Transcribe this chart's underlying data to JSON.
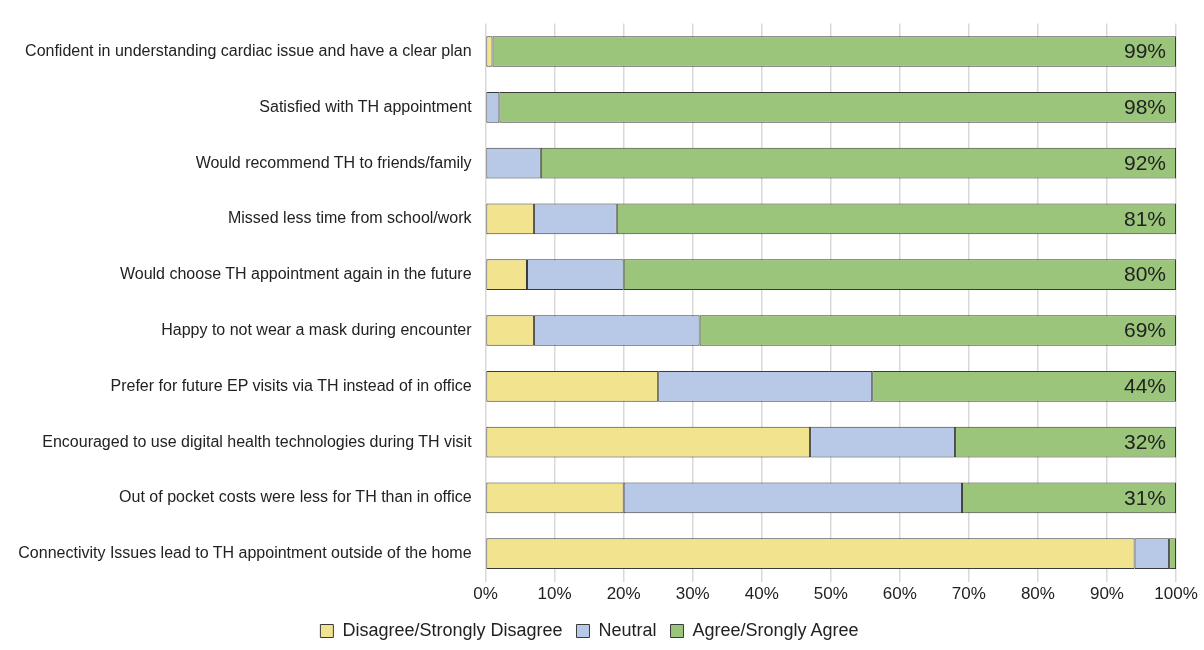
{
  "chart_data": {
    "type": "bar",
    "orientation": "horizontal",
    "stacked": true,
    "categories": [
      "Confident in understanding cardiac issue and have a clear plan",
      "Satisfied with TH appointment",
      "Would recommend TH to friends/family",
      "Missed less time from school/work",
      "Would choose TH appointment again in the future",
      "Happy to not wear a mask during encounter",
      "Prefer for future EP visits via TH instead of in office",
      "Encouraged to use digital health technologies during TH visit",
      "Out of pocket costs were less for TH than in office",
      "Connectivity Issues lead to TH appointment outside of the home"
    ],
    "series": [
      {
        "name": "Disagree/Strongly Disagree",
        "color": "#f2e38f",
        "values": [
          1,
          0,
          0,
          7,
          6,
          7,
          25,
          47,
          20,
          94
        ]
      },
      {
        "name": "Neutral",
        "color": "#b8c9e8",
        "values": [
          0,
          2,
          8,
          12,
          14,
          24,
          31,
          21,
          49,
          5
        ]
      },
      {
        "name": "Agree/Srongly Agree",
        "color": "#9bc57a",
        "values": [
          99,
          98,
          92,
          81,
          80,
          69,
          44,
          32,
          31,
          1
        ],
        "value_labels": [
          "99%",
          "98%",
          "92%",
          "81%",
          "80%",
          "69%",
          "44%",
          "32%",
          "31%",
          null
        ]
      }
    ],
    "xlim": [
      0,
      100
    ],
    "xticks": [
      {
        "value": 0,
        "label": "0%"
      },
      {
        "value": 10,
        "label": "10%"
      },
      {
        "value": 20,
        "label": "20%"
      },
      {
        "value": 30,
        "label": "30%"
      },
      {
        "value": 40,
        "label": "40%"
      },
      {
        "value": 50,
        "label": "50%"
      },
      {
        "value": 60,
        "label": "60%"
      },
      {
        "value": 70,
        "label": "70%"
      },
      {
        "value": 80,
        "label": "80%"
      },
      {
        "value": 90,
        "label": "90%"
      },
      {
        "value": 100,
        "label": "100%"
      }
    ],
    "grid": "x",
    "legend": "bottom"
  }
}
